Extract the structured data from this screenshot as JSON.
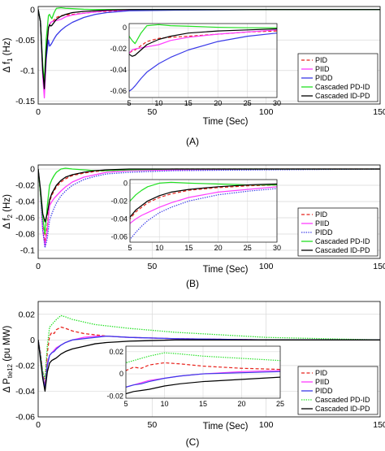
{
  "colors": {
    "PID": "#e8251f",
    "PIID": "#ff3dff",
    "PIDD": "#3a3ae8",
    "Cascaded PD-ID": "#22e022",
    "Cascaded ID-PD": "#000000",
    "grid": "#d9d9d9"
  },
  "chart_data": [
    {
      "type": "line",
      "caption": "(A)",
      "ylabel_main": "Δ f",
      "ylabel_sub": "1",
      "ylabel_unit": "(Hz)",
      "xlabel": "Time (Sec)",
      "xlim": [
        0,
        150
      ],
      "ylim": [
        -0.155,
        0.005
      ],
      "xticks": [
        0,
        50,
        100,
        150
      ],
      "yticks": [
        0,
        -0.05,
        -0.1,
        -0.15
      ],
      "ytick_labels": [
        "0",
        "-0.05",
        "-0.1",
        "-0.15"
      ],
      "grid": true,
      "legend_position": "bottom-right",
      "series": [
        {
          "name": "PID",
          "style": "dashed",
          "x": [
            0,
            1,
            2,
            2.7,
            3.5,
            4.5,
            5,
            5.5,
            6,
            7,
            8,
            10,
            12,
            15,
            20,
            25,
            30,
            40,
            60,
            100,
            150
          ],
          "y": [
            0,
            -0.02,
            -0.1,
            -0.138,
            -0.08,
            -0.03,
            -0.024,
            -0.022,
            -0.021,
            -0.017,
            -0.013,
            -0.01,
            -0.009,
            -0.008,
            -0.006,
            -0.004,
            -0.003,
            -0.001,
            0,
            0,
            0
          ]
        },
        {
          "name": "PIID",
          "style": "solid",
          "x": [
            0,
            1,
            2,
            2.7,
            3.5,
            4.5,
            5,
            5.5,
            6,
            7,
            8,
            10,
            12,
            15,
            20,
            25,
            30,
            40,
            60,
            100,
            150
          ],
          "y": [
            0,
            -0.02,
            -0.11,
            -0.145,
            -0.085,
            -0.03,
            -0.024,
            -0.021,
            -0.02,
            -0.019,
            -0.018,
            -0.016,
            -0.012,
            -0.009,
            -0.006,
            -0.004,
            -0.002,
            -0.001,
            0,
            0,
            0
          ]
        },
        {
          "name": "PIDD",
          "style": "solid",
          "x": [
            0,
            1,
            2,
            2.7,
            3.5,
            4.5,
            5,
            5.5,
            6,
            7,
            8,
            10,
            12,
            15,
            20,
            25,
            30,
            40,
            60,
            100,
            150
          ],
          "y": [
            0,
            -0.02,
            -0.1,
            -0.125,
            -0.08,
            -0.05,
            -0.06,
            -0.058,
            -0.055,
            -0.048,
            -0.042,
            -0.034,
            -0.028,
            -0.021,
            -0.013,
            -0.008,
            -0.005,
            -0.002,
            -0.001,
            0,
            0
          ]
        },
        {
          "name": "Cascaded PD-ID",
          "style": "solid",
          "x": [
            0,
            1,
            2,
            2.7,
            3.5,
            4.5,
            5,
            5.5,
            6,
            7,
            8,
            10,
            12,
            15,
            20,
            25,
            30,
            40,
            60,
            100,
            150
          ],
          "y": [
            0,
            -0.02,
            -0.09,
            -0.12,
            -0.05,
            -0.01,
            -0.008,
            -0.012,
            -0.015,
            -0.005,
            0.002,
            0.003,
            0.002,
            0.0015,
            0.0005,
            0,
            0,
            0,
            0,
            0,
            0
          ]
        },
        {
          "name": "Cascaded ID-PD",
          "style": "solid",
          "x": [
            0,
            1,
            2,
            2.7,
            3.5,
            4.5,
            5,
            5.5,
            6,
            7,
            8,
            10,
            12,
            15,
            20,
            25,
            30,
            40,
            60,
            100,
            150
          ],
          "y": [
            0,
            -0.02,
            -0.1,
            -0.13,
            -0.07,
            -0.03,
            -0.025,
            -0.027,
            -0.026,
            -0.021,
            -0.016,
            -0.011,
            -0.008,
            -0.005,
            -0.003,
            -0.002,
            -0.001,
            0,
            0,
            0,
            0
          ]
        }
      ],
      "inset": {
        "xlim": [
          5,
          30
        ],
        "ylim": [
          -0.066,
          0.004
        ],
        "xticks": [
          5,
          10,
          15,
          20,
          25,
          30
        ],
        "yticks": [
          0,
          -0.02,
          -0.04,
          -0.06
        ],
        "ytick_labels": [
          "0",
          "-0.02",
          "-0.04",
          "-0.06"
        ]
      }
    },
    {
      "type": "line",
      "caption": "(B)",
      "ylabel_main": "Δ f",
      "ylabel_sub": "2",
      "ylabel_unit": "(Hz)",
      "xlabel": "Time (Sec)",
      "xlim": [
        0,
        150
      ],
      "ylim": [
        -0.11,
        0.005
      ],
      "xticks": [
        0,
        50,
        100,
        150
      ],
      "yticks": [
        0,
        -0.02,
        -0.04,
        -0.06,
        -0.08,
        -0.1
      ],
      "ytick_labels": [
        "0",
        "-0.02",
        "-0.04",
        "-0.06",
        "-0.08",
        "-0.1"
      ],
      "grid": true,
      "legend_position": "bottom-right",
      "series": [
        {
          "name": "PID",
          "style": "dashed",
          "x": [
            0,
            1,
            2,
            3,
            4,
            5,
            6,
            7,
            8,
            10,
            12,
            15,
            20,
            25,
            30,
            40,
            60,
            100,
            150
          ],
          "y": [
            0,
            -0.03,
            -0.07,
            -0.09,
            -0.07,
            -0.04,
            -0.032,
            -0.027,
            -0.022,
            -0.016,
            -0.012,
            -0.008,
            -0.005,
            -0.003,
            -0.002,
            -0.001,
            0,
            0,
            0
          ]
        },
        {
          "name": "PIID",
          "style": "solid",
          "x": [
            0,
            1,
            2,
            3,
            4,
            5,
            6,
            7,
            8,
            10,
            12,
            15,
            20,
            25,
            30,
            40,
            60,
            100,
            150
          ],
          "y": [
            0,
            -0.03,
            -0.075,
            -0.095,
            -0.075,
            -0.045,
            -0.04,
            -0.036,
            -0.033,
            -0.027,
            -0.022,
            -0.016,
            -0.01,
            -0.007,
            -0.004,
            -0.002,
            -0.001,
            0,
            0
          ]
        },
        {
          "name": "PIDD",
          "style": "dotted",
          "x": [
            0,
            1,
            2,
            3,
            4,
            5,
            6,
            7,
            8,
            10,
            12,
            15,
            20,
            25,
            30,
            40,
            60,
            100,
            150
          ],
          "y": [
            0,
            -0.03,
            -0.075,
            -0.097,
            -0.085,
            -0.063,
            -0.055,
            -0.048,
            -0.042,
            -0.033,
            -0.027,
            -0.02,
            -0.013,
            -0.009,
            -0.006,
            -0.004,
            -0.002,
            -0.001,
            0
          ]
        },
        {
          "name": "Cascaded PD-ID",
          "style": "solid",
          "x": [
            0,
            1,
            2,
            3,
            4,
            5,
            6,
            7,
            8,
            10,
            12,
            15,
            20,
            25,
            30,
            40,
            60,
            100,
            150
          ],
          "y": [
            0,
            -0.03,
            -0.06,
            -0.08,
            -0.045,
            -0.02,
            -0.013,
            -0.008,
            -0.004,
            0,
            0.001,
            0,
            -0.001,
            -0.002,
            -0.002,
            -0.001,
            0,
            0,
            0
          ]
        },
        {
          "name": "Cascaded ID-PD",
          "style": "solid",
          "x": [
            0,
            1,
            2,
            3,
            4,
            5,
            6,
            7,
            8,
            10,
            12,
            15,
            20,
            25,
            30,
            40,
            60,
            100,
            150
          ],
          "y": [
            0,
            -0.025,
            -0.055,
            -0.065,
            -0.055,
            -0.038,
            -0.03,
            -0.025,
            -0.02,
            -0.014,
            -0.01,
            -0.007,
            -0.004,
            -0.002,
            -0.001,
            0,
            0,
            0,
            0
          ]
        }
      ],
      "inset": {
        "xlim": [
          5,
          30
        ],
        "ylim": [
          -0.066,
          0.004
        ],
        "xticks": [
          5,
          10,
          15,
          20,
          25,
          30
        ],
        "yticks": [
          0,
          -0.02,
          -0.04,
          -0.06
        ],
        "ytick_labels": [
          "0",
          "-0.02",
          "-0.04",
          "-0.06"
        ]
      }
    },
    {
      "type": "line",
      "caption": "(C)",
      "ylabel_main": "Δ P",
      "ylabel_sub": "tie12",
      "ylabel_unit": "(pu MW)",
      "xlabel": "Time (Sec)",
      "xlim": [
        0,
        150
      ],
      "ylim": [
        -0.06,
        0.03
      ],
      "xticks": [
        0,
        50,
        100,
        150
      ],
      "yticks": [
        0.02,
        0,
        -0.02,
        -0.04,
        -0.06
      ],
      "ytick_labels": [
        "0.02",
        "0",
        "-0.02",
        "-0.04",
        "-0.06"
      ],
      "grid": true,
      "legend_position": "bottom-right",
      "series": [
        {
          "name": "PID",
          "style": "dashed",
          "x": [
            0,
            1,
            2,
            3,
            4,
            5,
            6,
            7,
            8,
            10,
            12,
            15,
            20,
            25,
            30,
            40,
            60,
            100,
            150
          ],
          "y": [
            0,
            -0.01,
            -0.025,
            -0.035,
            -0.01,
            0.003,
            0.006,
            0.005,
            0.008,
            0.01,
            0.009,
            0.007,
            0.005,
            0.004,
            0.003,
            0.002,
            0.001,
            0,
            0
          ]
        },
        {
          "name": "PIID",
          "style": "solid",
          "x": [
            0,
            1,
            2,
            3,
            4,
            5,
            6,
            7,
            8,
            10,
            12,
            15,
            20,
            25,
            30,
            40,
            60,
            100,
            150
          ],
          "y": [
            0,
            -0.012,
            -0.028,
            -0.038,
            -0.018,
            -0.012,
            -0.01,
            -0.008,
            -0.006,
            -0.004,
            -0.002,
            0,
            0.002,
            0.003,
            0.003,
            0.002,
            0.001,
            0,
            0
          ]
        },
        {
          "name": "PIDD",
          "style": "solid",
          "x": [
            0,
            1,
            2,
            3,
            4,
            5,
            6,
            7,
            8,
            10,
            12,
            15,
            20,
            25,
            30,
            40,
            60,
            100,
            150
          ],
          "y": [
            0,
            -0.012,
            -0.028,
            -0.038,
            -0.02,
            -0.012,
            -0.01,
            -0.009,
            -0.007,
            -0.004,
            -0.002,
            0,
            0.001,
            0.002,
            0.003,
            0.002,
            0.001,
            0,
            0
          ]
        },
        {
          "name": "Cascaded PD-ID",
          "style": "dotted",
          "x": [
            0,
            1,
            2,
            3,
            4,
            5,
            6,
            7,
            8,
            10,
            12,
            15,
            20,
            25,
            30,
            40,
            60,
            80,
            100,
            150
          ],
          "y": [
            0,
            -0.012,
            -0.025,
            -0.03,
            -0.005,
            0.01,
            0.012,
            0.014,
            0.016,
            0.019,
            0.018,
            0.016,
            0.014,
            0.012,
            0.011,
            0.009,
            0.006,
            0.004,
            0.002,
            0
          ]
        },
        {
          "name": "Cascaded ID-PD",
          "style": "solid",
          "x": [
            0,
            1,
            2,
            3,
            4,
            5,
            6,
            7,
            8,
            10,
            12,
            15,
            20,
            25,
            30,
            40,
            60,
            100,
            150
          ],
          "y": [
            0,
            -0.015,
            -0.03,
            -0.04,
            -0.025,
            -0.018,
            -0.016,
            -0.015,
            -0.014,
            -0.011,
            -0.009,
            -0.007,
            -0.005,
            -0.003,
            -0.002,
            -0.001,
            0,
            0,
            0
          ]
        }
      ],
      "inset": {
        "xlim": [
          5,
          25
        ],
        "ylim": [
          -0.022,
          0.025
        ],
        "xticks": [
          5,
          10,
          15,
          20,
          25
        ],
        "yticks": [
          0.02,
          0,
          -0.02
        ],
        "ytick_labels": [
          "0.02",
          "0",
          "-0.02"
        ]
      }
    }
  ]
}
